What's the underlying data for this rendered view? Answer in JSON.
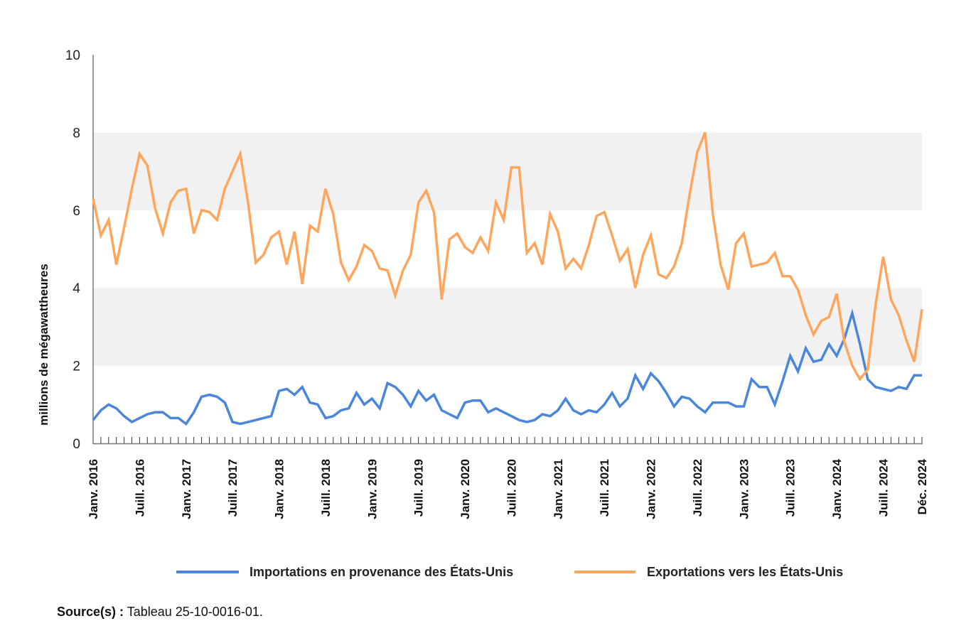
{
  "chart_data": {
    "type": "line",
    "title": "",
    "ylabel": "millions de mégawattheures",
    "xlabel": "",
    "ylim": [
      0,
      10
    ],
    "y_ticks": [
      "0",
      "2",
      "4",
      "6",
      "8",
      "10"
    ],
    "grid": "alternating horizontal bands",
    "start_month": "2016-01",
    "x_tick_labels": [
      {
        "month": "2016-01",
        "label": "Janv. 2016"
      },
      {
        "month": "2016-07",
        "label": "Juill. 2016"
      },
      {
        "month": "2017-01",
        "label": "Janv. 2017"
      },
      {
        "month": "2017-07",
        "label": "Juill. 2017"
      },
      {
        "month": "2018-01",
        "label": "Janv. 2018"
      },
      {
        "month": "2018-07",
        "label": "Juill. 2018"
      },
      {
        "month": "2019-01",
        "label": "Janv. 2019"
      },
      {
        "month": "2019-07",
        "label": "Juill. 2019"
      },
      {
        "month": "2020-01",
        "label": "Janv. 2020"
      },
      {
        "month": "2020-07",
        "label": "Juill. 2020"
      },
      {
        "month": "2021-01",
        "label": "Janv. 2021"
      },
      {
        "month": "2021-07",
        "label": "Juill. 2021"
      },
      {
        "month": "2022-01",
        "label": "Janv. 2022"
      },
      {
        "month": "2022-07",
        "label": "Juill. 2022"
      },
      {
        "month": "2023-01",
        "label": "Janv. 2023"
      },
      {
        "month": "2023-07",
        "label": "Juill. 2023"
      },
      {
        "month": "2024-01",
        "label": "Janv. 2024"
      },
      {
        "month": "2024-07",
        "label": "Juill. 2024"
      },
      {
        "month": "2024-12",
        "label": "Déc. 2024"
      }
    ],
    "legend_position": "bottom",
    "series": [
      {
        "name": "Importations en provenance des États-Unis",
        "color": "#4a86d9",
        "values": [
          0.6,
          0.85,
          1.0,
          0.9,
          0.7,
          0.55,
          0.65,
          0.75,
          0.8,
          0.8,
          0.65,
          0.65,
          0.5,
          0.8,
          1.2,
          1.25,
          1.2,
          1.05,
          0.55,
          0.5,
          0.55,
          0.6,
          0.65,
          0.7,
          1.35,
          1.4,
          1.25,
          1.45,
          1.05,
          1.0,
          0.65,
          0.7,
          0.85,
          0.9,
          1.3,
          1.0,
          1.15,
          0.9,
          1.55,
          1.45,
          1.25,
          0.95,
          1.35,
          1.1,
          1.25,
          0.85,
          0.75,
          0.65,
          1.05,
          1.1,
          1.1,
          0.8,
          0.9,
          0.8,
          0.7,
          0.6,
          0.55,
          0.6,
          0.75,
          0.7,
          0.85,
          1.15,
          0.85,
          0.75,
          0.85,
          0.8,
          1.0,
          1.3,
          0.95,
          1.15,
          1.75,
          1.4,
          1.8,
          1.6,
          1.3,
          0.95,
          1.2,
          1.15,
          0.95,
          0.8,
          1.05,
          1.05,
          1.05,
          0.95,
          0.95,
          1.65,
          1.45,
          1.45,
          1.0,
          1.6,
          2.25,
          1.85,
          2.45,
          2.1,
          2.15,
          2.55,
          2.25,
          2.7,
          3.35,
          2.55,
          1.65,
          1.45,
          1.4,
          1.35,
          1.45,
          1.4,
          1.75,
          1.75
        ]
      },
      {
        "name": "Exportations vers les États-Unis",
        "color": "#ffa55c",
        "values": [
          6.3,
          5.35,
          5.75,
          4.6,
          5.55,
          6.55,
          7.45,
          7.15,
          6.05,
          5.4,
          6.2,
          6.5,
          6.55,
          5.4,
          6.0,
          5.95,
          5.75,
          6.55,
          7.0,
          7.45,
          6.2,
          4.65,
          4.85,
          5.3,
          5.45,
          4.6,
          5.45,
          4.1,
          5.6,
          5.45,
          6.55,
          5.9,
          4.65,
          4.2,
          4.55,
          5.1,
          4.95,
          4.5,
          4.45,
          3.8,
          4.45,
          4.85,
          6.2,
          6.5,
          5.95,
          3.7,
          5.25,
          5.4,
          5.05,
          4.9,
          5.3,
          4.95,
          6.2,
          5.75,
          7.1,
          7.1,
          4.9,
          5.15,
          4.6,
          5.9,
          5.45,
          4.5,
          4.75,
          4.5,
          5.1,
          5.85,
          5.95,
          5.35,
          4.7,
          5.0,
          4.0,
          4.85,
          5.35,
          4.35,
          4.25,
          4.55,
          5.15,
          6.4,
          7.5,
          8.0,
          5.9,
          4.6,
          3.95,
          5.15,
          5.4,
          4.55,
          4.6,
          4.65,
          4.9,
          4.3,
          4.3,
          3.95,
          3.3,
          2.8,
          3.15,
          3.25,
          3.85,
          2.6,
          2.0,
          1.65,
          1.9,
          3.55,
          4.8,
          3.7,
          3.3,
          2.65,
          2.1,
          3.45
        ]
      }
    ]
  },
  "source": {
    "label": "Source(s) :",
    "text": "Tableau 25-10-0016-01."
  }
}
